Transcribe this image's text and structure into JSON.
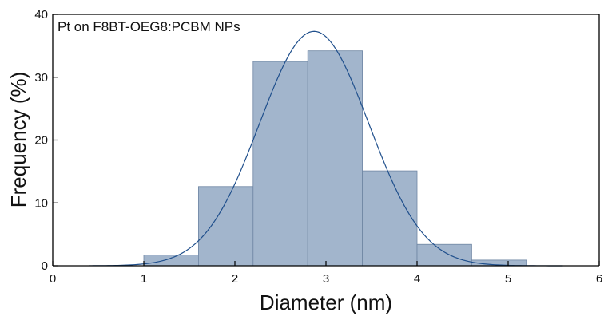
{
  "chart_data": {
    "type": "bar",
    "title": "",
    "annotation": "Pt on F8BT-OEG8:PCBM NPs",
    "xlabel": "Diameter (nm)",
    "ylabel": "Frequency (%)",
    "xlim": [
      0,
      6
    ],
    "ylim": [
      0,
      40
    ],
    "x_ticks": [
      0,
      1,
      2,
      3,
      4,
      5,
      6
    ],
    "y_ticks": [
      0,
      10,
      20,
      30,
      40
    ],
    "grid": false,
    "legend": "none",
    "bin_edges": [
      1.0,
      1.6,
      2.2,
      2.8,
      3.4,
      4.0,
      4.6,
      5.2
    ],
    "values": [
      1.7,
      12.6,
      32.5,
      34.2,
      15.1,
      3.4,
      0.9
    ],
    "fit": {
      "type": "gaussian",
      "mean": 2.87,
      "sigma": 0.6,
      "peak": 37.3,
      "x_range": [
        0.4,
        5.6
      ]
    },
    "colors": {
      "bar_fill": "#a2b5cc",
      "bar_edge": "#6f86a3",
      "fit_line": "#1f4f8c"
    }
  }
}
